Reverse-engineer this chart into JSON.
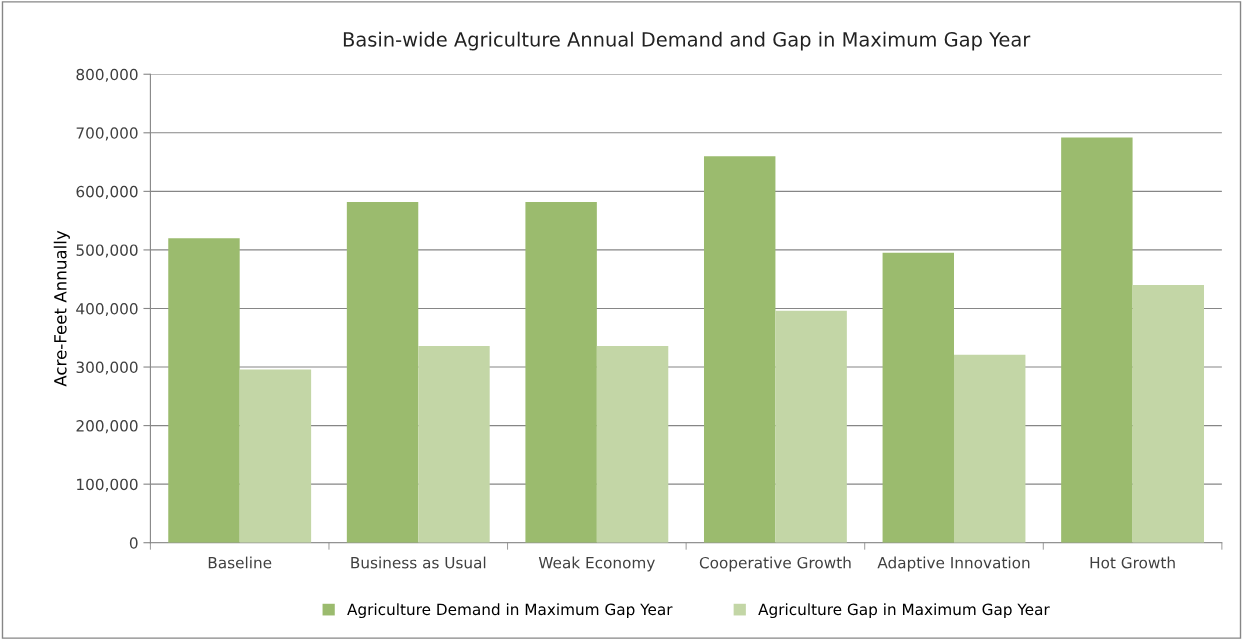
{
  "chart_data": {
    "type": "bar",
    "title": "Basin-wide Agriculture Annual Demand and Gap in Maximum Gap Year",
    "ylabel": "Acre-Feet Annually",
    "categories": [
      "Baseline",
      "Business as Usual",
      "Weak Economy",
      "Cooperative Growth",
      "Adaptive Innovation",
      "Hot Growth"
    ],
    "series": [
      {
        "name": "Agriculture Demand in Maximum Gap Year",
        "color": "#9bbb6e",
        "values": [
          520000,
          582000,
          582000,
          660000,
          495000,
          692000
        ]
      },
      {
        "name": "Agriculture Gap in Maximum Gap Year",
        "color": "#c3d6a6",
        "values": [
          296000,
          336000,
          336000,
          396000,
          321000,
          440000
        ]
      }
    ],
    "ylim": [
      0,
      800000
    ],
    "yticks": [
      {
        "value": 0,
        "label": "0"
      },
      {
        "value": 100000,
        "label": "100,000"
      },
      {
        "value": 200000,
        "label": "200,000"
      },
      {
        "value": 300000,
        "label": "300,000"
      },
      {
        "value": 400000,
        "label": "400,000"
      },
      {
        "value": 500000,
        "label": "500,000"
      },
      {
        "value": 600000,
        "label": "600,000"
      },
      {
        "value": 700000,
        "label": "700,000"
      },
      {
        "value": 800000,
        "label": "800,000"
      }
    ],
    "grid": "y",
    "legend": "bottom"
  }
}
